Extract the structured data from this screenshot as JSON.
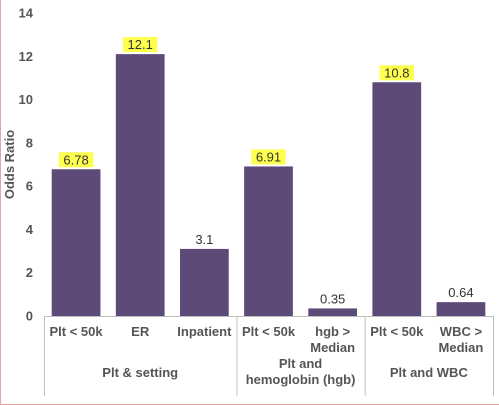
{
  "chart_data": {
    "type": "bar",
    "ylabel": "Odds Ratio",
    "ylim": [
      0,
      14
    ],
    "yticks": [
      0,
      2,
      4,
      6,
      8,
      10,
      12,
      14
    ],
    "grid": false,
    "bar_color": "#5e4a78",
    "highlight_color": "#ffff4d",
    "categories": [
      {
        "label": [
          "Plt < 50k"
        ],
        "value": 6.78,
        "value_label": "6.78",
        "highlight": true
      },
      {
        "label": [
          "ER"
        ],
        "value": 12.1,
        "value_label": "12.1",
        "highlight": true
      },
      {
        "label": [
          "Inpatient"
        ],
        "value": 3.1,
        "value_label": "3.1",
        "highlight": false
      },
      {
        "label": [
          "Plt < 50k"
        ],
        "value": 6.91,
        "value_label": "6.91",
        "highlight": true
      },
      {
        "label": [
          "hgb >",
          "Median"
        ],
        "value": 0.35,
        "value_label": "0.35",
        "highlight": false
      },
      {
        "label": [
          "Plt < 50k"
        ],
        "value": 10.8,
        "value_label": "10.8",
        "highlight": true
      },
      {
        "label": [
          "WBC >",
          "Median"
        ],
        "value": 0.64,
        "value_label": "0.64",
        "highlight": false
      }
    ],
    "groups": [
      {
        "label": [
          "Plt & setting"
        ],
        "start": 0,
        "end": 2
      },
      {
        "label": [
          "Plt and",
          "hemoglobin (hgb)"
        ],
        "start": 3,
        "end": 4
      },
      {
        "label": [
          "Plt and WBC"
        ],
        "start": 5,
        "end": 6
      }
    ]
  }
}
